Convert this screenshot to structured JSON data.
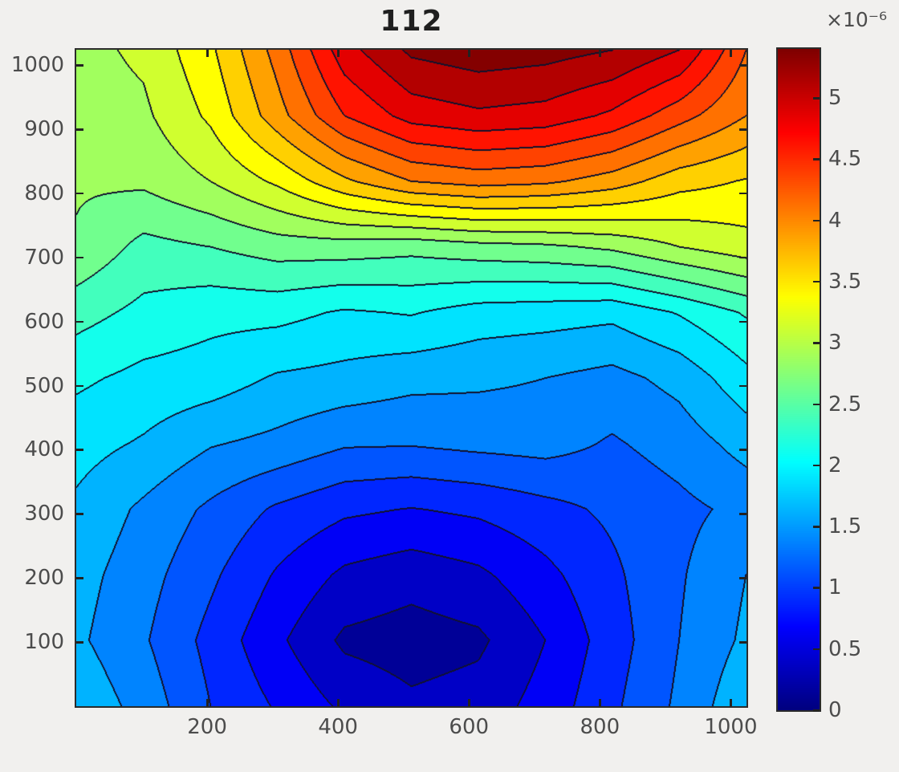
{
  "title": "112",
  "axes": {
    "x_ticks": [
      "200",
      "400",
      "600",
      "800",
      "1000"
    ],
    "x_tick_values": [
      200,
      400,
      600,
      800,
      1000
    ],
    "y_ticks": [
      "100",
      "200",
      "300",
      "400",
      "500",
      "600",
      "700",
      "800",
      "900",
      "1000"
    ],
    "y_tick_values": [
      100,
      200,
      300,
      400,
      500,
      600,
      700,
      800,
      900,
      1000
    ],
    "x_range": [
      0,
      1024
    ],
    "y_range": [
      0,
      1024
    ]
  },
  "colorbar": {
    "exponent_label": "×10⁻⁶",
    "ticks": [
      "0",
      "0.5",
      "1",
      "1.5",
      "2",
      "2.5",
      "3",
      "3.5",
      "4",
      "4.5",
      "5"
    ],
    "tick_values": [
      0,
      0.5,
      1,
      1.5,
      2,
      2.5,
      3,
      3.5,
      4,
      4.5,
      5
    ],
    "range": [
      0,
      5.4
    ]
  },
  "chart_data": {
    "type": "filled_contour",
    "title": "112",
    "colormap": "jet",
    "grid_on": false,
    "legend": "colorbar-right",
    "x": [
      0,
      102.4,
      204.8,
      307.2,
      409.6,
      512,
      614.4,
      716.8,
      819.2,
      921.6,
      1024
    ],
    "y": [
      0,
      102.4,
      204.8,
      307.2,
      409.6,
      512,
      614.4,
      716.8,
      819.2,
      921.6,
      1024
    ],
    "z_unit_scale": 1e-06,
    "levels_step": 0.25,
    "clim": [
      0,
      5.4
    ],
    "z_rows_bottom_to_top": [
      [
        1.7,
        1.4,
        1.0,
        0.72,
        0.45,
        0.3,
        0.36,
        0.6,
        0.95,
        1.3,
        1.7
      ],
      [
        1.55,
        1.28,
        0.92,
        0.55,
        0.2,
        0.13,
        0.2,
        0.5,
        0.88,
        1.25,
        1.55
      ],
      [
        1.6,
        1.35,
        1.05,
        0.72,
        0.45,
        0.35,
        0.45,
        0.68,
        0.95,
        1.22,
        1.5
      ],
      [
        1.7,
        1.45,
        1.2,
        0.96,
        0.8,
        0.74,
        0.8,
        0.92,
        1.05,
        1.18,
        1.32
      ],
      [
        1.85,
        1.72,
        1.52,
        1.43,
        1.28,
        1.27,
        1.32,
        1.35,
        1.22,
        1.36,
        1.6
      ],
      [
        2.05,
        1.93,
        1.88,
        1.72,
        1.67,
        1.58,
        1.55,
        1.5,
        1.42,
        1.58,
        1.92
      ],
      [
        2.35,
        2.18,
        2.08,
        2.08,
        1.97,
        2.02,
        1.89,
        1.86,
        1.82,
        2.02,
        2.28
      ],
      [
        2.72,
        2.42,
        2.5,
        2.62,
        2.63,
        2.58,
        2.66,
        2.7,
        2.8,
        3.0,
        3.15
      ],
      [
        2.78,
        2.8,
        3.0,
        3.3,
        3.7,
        4.0,
        4.1,
        4.05,
        3.88,
        3.6,
        3.48
      ],
      [
        2.88,
        2.95,
        3.3,
        3.9,
        4.5,
        4.85,
        4.95,
        4.9,
        4.7,
        4.35,
        4.0
      ],
      [
        2.92,
        3.05,
        3.45,
        4.1,
        4.9,
        5.3,
        5.4,
        5.35,
        5.25,
        5.0,
        4.25
      ]
    ]
  },
  "colors": {
    "background": "#f1f0ee",
    "axis_line": "#2b2b2b",
    "tick_label": "#4c4c4c",
    "title_text": "#1f1f1f",
    "contour_line": "#12122d"
  }
}
